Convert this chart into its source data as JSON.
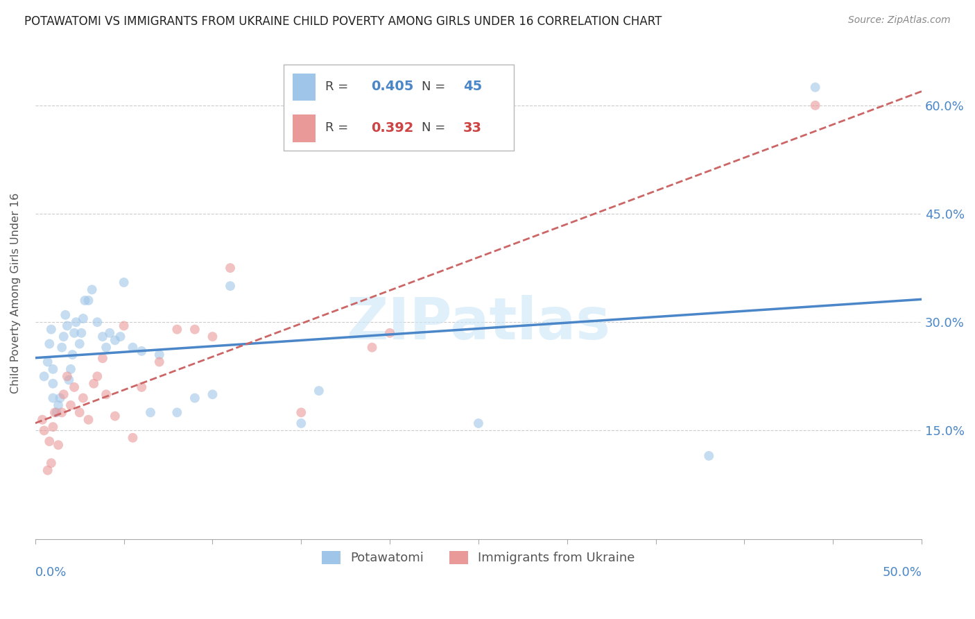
{
  "title": "POTAWATOMI VS IMMIGRANTS FROM UKRAINE CHILD POVERTY AMONG GIRLS UNDER 16 CORRELATION CHART",
  "source": "Source: ZipAtlas.com",
  "ylabel": "Child Poverty Among Girls Under 16",
  "legend1_R": "0.405",
  "legend1_N": "45",
  "legend2_R": "0.392",
  "legend2_N": "33",
  "blue_color": "#9fc5e8",
  "pink_color": "#ea9999",
  "blue_line_color": "#4a86c8",
  "pink_line_color": "#cc6666",
  "grid_color": "#cccccc",
  "watermark": "ZIPatlas",
  "xlim": [
    0.0,
    0.5
  ],
  "ylim": [
    0.0,
    0.68
  ],
  "potawatomi_x": [
    0.005,
    0.007,
    0.008,
    0.009,
    0.01,
    0.01,
    0.01,
    0.012,
    0.013,
    0.014,
    0.015,
    0.016,
    0.017,
    0.018,
    0.019,
    0.02,
    0.021,
    0.022,
    0.023,
    0.025,
    0.026,
    0.027,
    0.028,
    0.03,
    0.032,
    0.035,
    0.038,
    0.04,
    0.042,
    0.045,
    0.048,
    0.05,
    0.055,
    0.06,
    0.065,
    0.07,
    0.08,
    0.09,
    0.1,
    0.11,
    0.15,
    0.16,
    0.25,
    0.38,
    0.44
  ],
  "potawatomi_y": [
    0.225,
    0.245,
    0.27,
    0.29,
    0.195,
    0.215,
    0.235,
    0.175,
    0.185,
    0.195,
    0.265,
    0.28,
    0.31,
    0.295,
    0.22,
    0.235,
    0.255,
    0.285,
    0.3,
    0.27,
    0.285,
    0.305,
    0.33,
    0.33,
    0.345,
    0.3,
    0.28,
    0.265,
    0.285,
    0.275,
    0.28,
    0.355,
    0.265,
    0.26,
    0.175,
    0.255,
    0.175,
    0.195,
    0.2,
    0.35,
    0.16,
    0.205,
    0.16,
    0.115,
    0.625
  ],
  "ukraine_x": [
    0.004,
    0.005,
    0.007,
    0.008,
    0.009,
    0.01,
    0.011,
    0.013,
    0.015,
    0.016,
    0.018,
    0.02,
    0.022,
    0.025,
    0.027,
    0.03,
    0.033,
    0.035,
    0.038,
    0.04,
    0.045,
    0.05,
    0.055,
    0.06,
    0.07,
    0.08,
    0.09,
    0.1,
    0.11,
    0.15,
    0.19,
    0.2,
    0.44
  ],
  "ukraine_y": [
    0.165,
    0.15,
    0.095,
    0.135,
    0.105,
    0.155,
    0.175,
    0.13,
    0.175,
    0.2,
    0.225,
    0.185,
    0.21,
    0.175,
    0.195,
    0.165,
    0.215,
    0.225,
    0.25,
    0.2,
    0.17,
    0.295,
    0.14,
    0.21,
    0.245,
    0.29,
    0.29,
    0.28,
    0.375,
    0.175,
    0.265,
    0.285,
    0.6
  ],
  "marker_size": 100,
  "marker_alpha": 0.6,
  "ytick_positions": [
    0.15,
    0.3,
    0.45,
    0.6
  ],
  "ytick_labels": [
    "15.0%",
    "30.0%",
    "45.0%",
    "60.0%"
  ]
}
